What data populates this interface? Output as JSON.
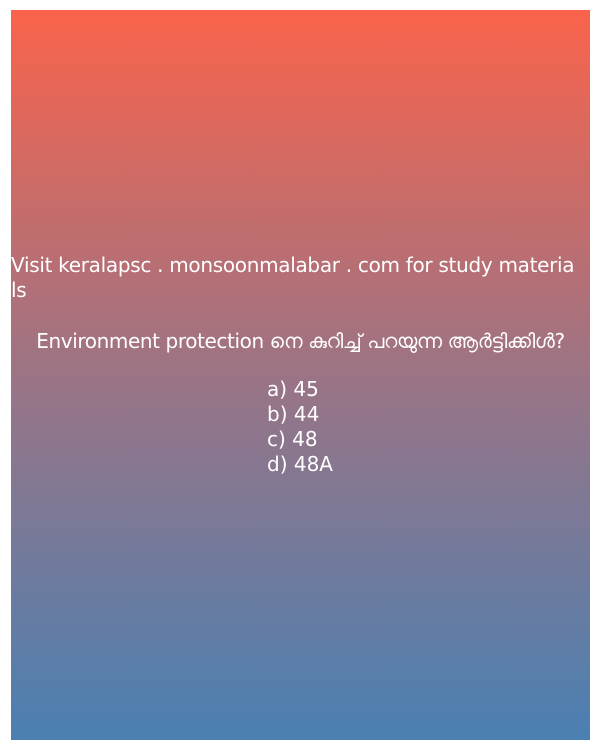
{
  "promo_text": "Visit keralapsc . monsoonmalabar . com for study materia\n ls",
  "question": "Environment protection നെ കുറിച്ച് പറയുന്ന ആർട്ടിക്കിൾ?",
  "options": [
    "a) 45",
    "b) 44",
    "c) 48",
    "d) 48A"
  ],
  "colors": {
    "gradient_top": "#fa634b",
    "gradient_bottom": "#4a80b2",
    "text": "#ffffff"
  }
}
